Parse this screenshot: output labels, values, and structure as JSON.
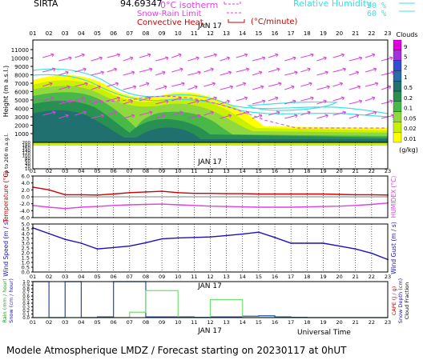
{
  "header": {
    "site": "SIRTA",
    "coords": "94.69347",
    "legend_isotherm": "0°C isotherm",
    "legend_snow": "Snow-Rain Limit",
    "legend_conv": "Convective Heat.",
    "legend_conv_unit": "(°C/minute)",
    "legend_rh": "Relative Humidity",
    "rh_high": "90 %",
    "rh_low": "60 %",
    "colors": {
      "isotherm": "#e040e0",
      "conv": "#d00000",
      "rh": "#40e0e0"
    }
  },
  "footer": {
    "title": "Modele Atmospherique LMDZ / Forecast starting on 20230117 at 0hUT",
    "universal_time": "Universal Time"
  },
  "hours": [
    "01",
    "02",
    "03",
    "04",
    "05",
    "06",
    "07",
    "08",
    "09",
    "10",
    "11",
    "12",
    "13",
    "14",
    "15",
    "16",
    "17",
    "18",
    "19",
    "20",
    "21",
    "22",
    "23"
  ],
  "date_label": "JAN 17",
  "chart_data": [
    {
      "type": "heatmap",
      "name": "clouds",
      "ylabel": "Height (m a.s.l.)",
      "yticks": [
        1000,
        2000,
        3000,
        4000,
        5000,
        6000,
        7000,
        8000,
        9000,
        10000,
        11000
      ],
      "colorbar_title": "Clouds",
      "colorbar_unit": "(g/kg)",
      "colorbar_levels": [
        "0.01",
        "0.02",
        "0.05",
        "0.1",
        "0.2",
        "0.5",
        "1",
        "2",
        "5",
        "9"
      ],
      "colorbar_colors": [
        "#ffff00",
        "#c8f000",
        "#90d840",
        "#48b848",
        "#289050",
        "#207070",
        "#2a6ca8",
        "#3050d0",
        "#a030e0",
        "#e000e0"
      ]
    },
    {
      "type": "area",
      "name": "low-level clouds",
      "ylabel": "Up to 200 m a.g.l.",
      "yticks": [
        10,
        20,
        40,
        60,
        80,
        100,
        120,
        140,
        160,
        180,
        200
      ]
    },
    {
      "type": "line",
      "name": "temperature",
      "ylabel": "Temperature (°C)",
      "ylabel_right": "HUMIDEX (°C)",
      "yticks": [
        "-6.0",
        "-4.0",
        "-2.0",
        "0.0",
        "2.0",
        "4.0",
        "6.0"
      ],
      "ylim": [
        -6,
        6
      ],
      "series": [
        {
          "name": "Temperature",
          "color": "#d00000",
          "values": [
            2.8,
            2.0,
            0.6,
            0.6,
            0.5,
            0.8,
            1.2,
            1.4,
            1.6,
            1.2,
            1.0,
            1.0,
            0.9,
            0.9,
            0.8,
            0.8,
            0.8,
            0.8,
            0.8,
            0.7,
            0.6,
            0.6,
            0.5
          ]
        },
        {
          "name": "Humidex",
          "color": "#e040e0",
          "values": [
            -2.5,
            -3.0,
            -3.4,
            -3.0,
            -2.8,
            -2.5,
            -2.3,
            -2.2,
            -2.1,
            -2.3,
            -2.5,
            -2.7,
            -2.8,
            -2.9,
            -3.0,
            -3.0,
            -3.0,
            -2.9,
            -2.8,
            -2.7,
            -2.5,
            -2.2,
            -1.8
          ]
        }
      ]
    },
    {
      "type": "line",
      "name": "wind",
      "ylabel": "Wind Speed (m / s)",
      "ylabel_right": "Wind Gust (m / s)",
      "yticks": [
        "0.0",
        "0.5",
        "1.0",
        "1.5",
        "2.0",
        "2.5",
        "3.0",
        "3.5",
        "4.0",
        "4.5",
        "5.0"
      ],
      "ylim": [
        0,
        5
      ],
      "series": [
        {
          "name": "Wind Speed",
          "color": "#1a10c0",
          "values": [
            4.6,
            4.0,
            3.4,
            3.0,
            2.4,
            2.55,
            2.7,
            3.05,
            3.45,
            3.55,
            3.6,
            3.65,
            3.8,
            3.95,
            4.15,
            3.6,
            3.0,
            3.0,
            3.0,
            2.7,
            2.4,
            1.95,
            1.3
          ]
        }
      ]
    },
    {
      "type": "bar",
      "name": "precipitation",
      "ylabel": "Rain (mm / hour)",
      "ylabel2": "Snow (cm / hour)",
      "ylabel_right": "CAPE (J / g)",
      "ylabel_right2": "Snow Depth (cm)",
      "ylabel_right3": "Cloud Fraction",
      "yticks": [
        "0.0",
        "0.1",
        "0.2",
        "0.3",
        "0.4",
        "0.5",
        "0.6",
        "0.7",
        "0.8",
        "0.9",
        "1.0"
      ],
      "ylim": [
        0,
        1
      ],
      "series": [
        {
          "name": "Cloud fraction",
          "color": "#2050a0",
          "values": [
            1.0,
            0.0,
            1.0,
            0.0,
            0.02,
            1.0,
            1.0,
            0.02,
            0.02,
            0.02,
            0.01,
            0.02,
            0.02,
            0.04,
            0.05,
            0.02,
            0.01,
            0.0,
            0.0,
            0.0,
            0.0,
            0.0,
            0.0
          ]
        },
        {
          "name": "Rain",
          "color": "#70e070",
          "values": [
            0,
            0,
            0,
            0,
            0,
            0,
            0.15,
            0.75,
            0.75,
            0,
            0,
            0.5,
            0.5,
            0,
            0,
            0,
            0,
            0,
            0,
            0,
            0,
            0,
            0
          ]
        }
      ]
    }
  ]
}
